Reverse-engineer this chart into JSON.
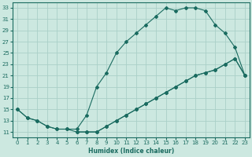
{
  "xlabel": "Humidex (Indice chaleur)",
  "bg_color": "#cce8e0",
  "grid_color": "#aad0c8",
  "line_color": "#1a6b60",
  "xlim": [
    -0.5,
    23.5
  ],
  "ylim": [
    10,
    34
  ],
  "xticks": [
    0,
    1,
    2,
    3,
    4,
    5,
    6,
    7,
    8,
    9,
    10,
    11,
    12,
    13,
    14,
    15,
    16,
    17,
    18,
    19,
    20,
    21,
    22,
    23
  ],
  "yticks": [
    11,
    13,
    15,
    17,
    19,
    21,
    23,
    25,
    27,
    29,
    31,
    33
  ],
  "line1_x": [
    0,
    1,
    2,
    3,
    4,
    5,
    6,
    7,
    8,
    9,
    10,
    11,
    12,
    13,
    14,
    15,
    16,
    17,
    18,
    19,
    20,
    21,
    22,
    23
  ],
  "line1_y": [
    15,
    13.5,
    13,
    12,
    11.5,
    11.5,
    11,
    11,
    11,
    12,
    13,
    14,
    15,
    16,
    17,
    18,
    19,
    20,
    21,
    21.5,
    22,
    23,
    24,
    21
  ],
  "line2_x": [
    0,
    1,
    2,
    3,
    4,
    5,
    6,
    7,
    8,
    9,
    10,
    11,
    12,
    13,
    14,
    15,
    16,
    17,
    18,
    19,
    20,
    21,
    22,
    23
  ],
  "line2_y": [
    15,
    13.5,
    13,
    12,
    11.5,
    11.5,
    11.5,
    14,
    19,
    21.5,
    25,
    27,
    28.5,
    30,
    31.5,
    33,
    32.5,
    33,
    33,
    32.5,
    30,
    28.5,
    26,
    21
  ],
  "line3_x": [
    6,
    7,
    8,
    9,
    10,
    11,
    12,
    13,
    14,
    15,
    16,
    17,
    18,
    19,
    20,
    21,
    22,
    23
  ],
  "line3_y": [
    11,
    11,
    11,
    12,
    13,
    14,
    15,
    16,
    17,
    18,
    19,
    20,
    21,
    21.5,
    22,
    23,
    24,
    21
  ]
}
